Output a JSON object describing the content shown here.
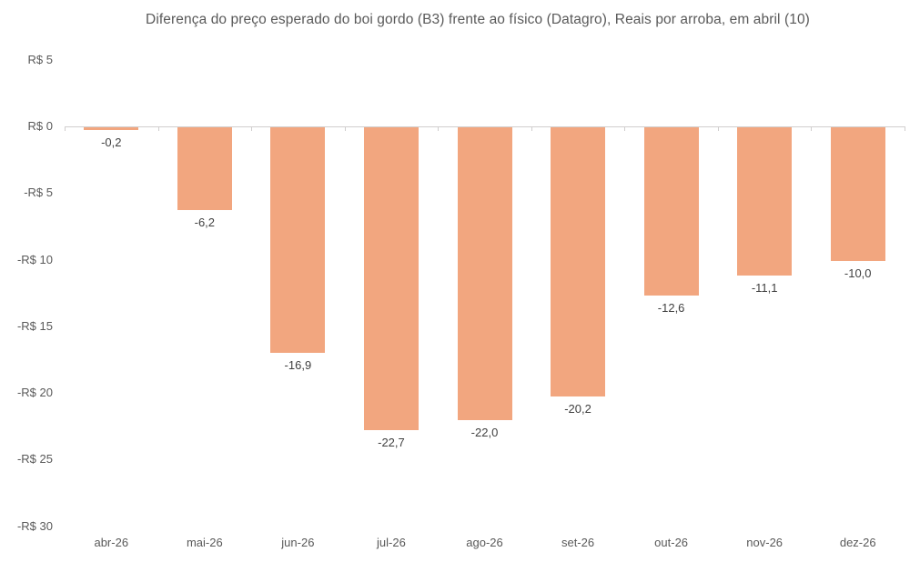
{
  "chart_data": {
    "type": "bar",
    "title": "Diferença do preço esperado do boi gordo (B3) frente ao físico (Datagro), Reais por arroba, em abril (10)",
    "categories": [
      "abr-26",
      "mai-26",
      "jun-26",
      "jul-26",
      "ago-26",
      "set-26",
      "out-26",
      "nov-26",
      "dez-26"
    ],
    "values": [
      -0.2,
      -6.2,
      -16.9,
      -22.7,
      -22.0,
      -20.2,
      -12.6,
      -11.1,
      -10.0
    ],
    "value_labels": [
      "-0,2",
      "-6,2",
      "-16,9",
      "-22,7",
      "-22,0",
      "-20,2",
      "-12,6",
      "-11,1",
      "-10,0"
    ],
    "xlabel": "",
    "ylabel": "",
    "ylim": [
      -30,
      5
    ],
    "y_ticks": [
      {
        "value": 5,
        "label": "R$ 5"
      },
      {
        "value": 0,
        "label": "R$ 0"
      },
      {
        "value": -5,
        "label": "-R$ 5"
      },
      {
        "value": -10,
        "label": "-R$ 10"
      },
      {
        "value": -15,
        "label": "-R$ 15"
      },
      {
        "value": -20,
        "label": "-R$ 20"
      },
      {
        "value": -25,
        "label": "-R$ 25"
      },
      {
        "value": -30,
        "label": "-R$ 30"
      }
    ],
    "bar_color": "#F2A67F",
    "grid": false,
    "legend": false
  }
}
